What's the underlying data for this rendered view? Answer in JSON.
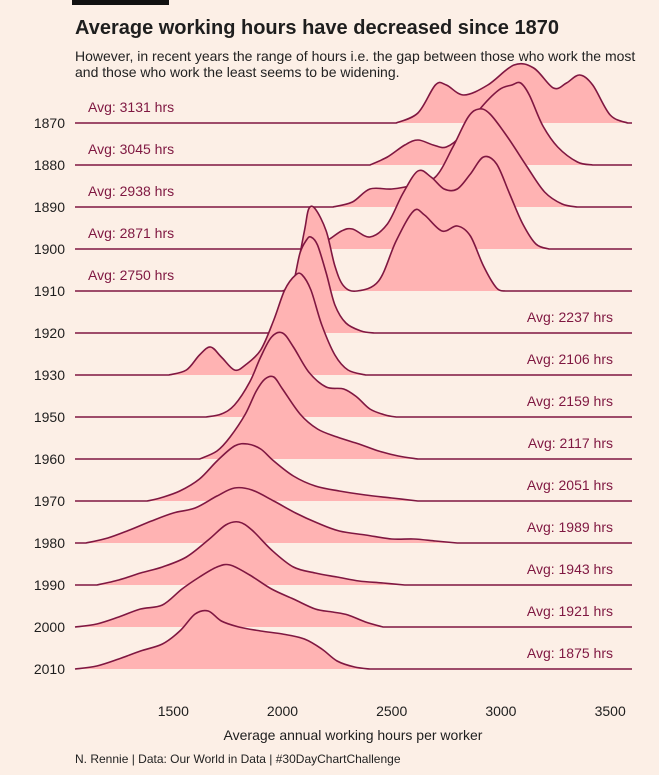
{
  "header": {
    "title": "Average working hours have decreased since 1870",
    "subtitle": "However, in recent years the range of hours i.e. the gap between those who work the most and those who work the least seems to be widening."
  },
  "caption": "N. Rennie | Data: Our World in Data | #30DayChartChallenge",
  "colors": {
    "background": "#fcefe6",
    "fill": "#ffb3b3",
    "line": "#7f1741",
    "text": "#1e1e1e"
  },
  "chart_data": {
    "type": "area",
    "xlabel": "Average annual working hours per worker",
    "ylabel": "",
    "xlim": [
      1050,
      3600
    ],
    "x_ticks": [
      1500,
      2000,
      2500,
      3000,
      3500
    ],
    "grid": false,
    "legend": "none",
    "series": [
      {
        "name": "1870",
        "label": "Avg: 3131 hrs",
        "points": [
          [
            2520,
            0
          ],
          [
            2620,
            10
          ],
          [
            2700,
            38
          ],
          [
            2750,
            38
          ],
          [
            2830,
            28
          ],
          [
            2940,
            38
          ],
          [
            3060,
            58
          ],
          [
            3150,
            55
          ],
          [
            3240,
            35
          ],
          [
            3300,
            40
          ],
          [
            3360,
            48
          ],
          [
            3420,
            38
          ],
          [
            3500,
            8
          ],
          [
            3580,
            0
          ]
        ]
      },
      {
        "name": "1880",
        "label": "Avg: 3045 hrs",
        "points": [
          [
            2400,
            0
          ],
          [
            2480,
            8
          ],
          [
            2560,
            20
          ],
          [
            2620,
            25
          ],
          [
            2690,
            20
          ],
          [
            2750,
            18
          ],
          [
            2820,
            30
          ],
          [
            2900,
            55
          ],
          [
            2990,
            75
          ],
          [
            3050,
            80
          ],
          [
            3090,
            82
          ],
          [
            3130,
            70
          ],
          [
            3190,
            40
          ],
          [
            3260,
            18
          ],
          [
            3350,
            3
          ],
          [
            3420,
            0
          ]
        ]
      },
      {
        "name": "1890",
        "label": "Avg: 2938 hrs",
        "points": [
          [
            2230,
            0
          ],
          [
            2320,
            5
          ],
          [
            2400,
            18
          ],
          [
            2500,
            18
          ],
          [
            2600,
            22
          ],
          [
            2700,
            30
          ],
          [
            2780,
            60
          ],
          [
            2850,
            90
          ],
          [
            2900,
            98
          ],
          [
            2950,
            93
          ],
          [
            3030,
            70
          ],
          [
            3120,
            40
          ],
          [
            3200,
            15
          ],
          [
            3280,
            3
          ],
          [
            3350,
            0
          ]
        ]
      },
      {
        "name": "1900",
        "label": "Avg: 2871 hrs",
        "points": [
          [
            2100,
            0
          ],
          [
            2200,
            8
          ],
          [
            2270,
            18
          ],
          [
            2320,
            20
          ],
          [
            2400,
            12
          ],
          [
            2480,
            25
          ],
          [
            2550,
            55
          ],
          [
            2620,
            78
          ],
          [
            2680,
            72
          ],
          [
            2740,
            60
          ],
          [
            2800,
            60
          ],
          [
            2860,
            75
          ],
          [
            2920,
            92
          ],
          [
            2980,
            85
          ],
          [
            3040,
            55
          ],
          [
            3100,
            25
          ],
          [
            3160,
            5
          ],
          [
            3220,
            0
          ]
        ]
      },
      {
        "name": "1910",
        "label": "Avg: 2750 hrs",
        "points": [
          [
            2000,
            0
          ],
          [
            2050,
            8
          ],
          [
            2100,
            60
          ],
          [
            2120,
            82
          ],
          [
            2150,
            82
          ],
          [
            2200,
            60
          ],
          [
            2240,
            25
          ],
          [
            2280,
            5
          ],
          [
            2340,
            0
          ],
          [
            2440,
            10
          ],
          [
            2520,
            50
          ],
          [
            2600,
            80
          ],
          [
            2650,
            76
          ],
          [
            2730,
            60
          ],
          [
            2800,
            65
          ],
          [
            2860,
            55
          ],
          [
            2920,
            25
          ],
          [
            2980,
            3
          ],
          [
            3020,
            0
          ]
        ]
      },
      {
        "name": "1920",
        "label": "Avg: 2237 hrs",
        "points": [
          [
            1940,
            0
          ],
          [
            2000,
            15
          ],
          [
            2050,
            50
          ],
          [
            2080,
            80
          ],
          [
            2110,
            93
          ],
          [
            2130,
            96
          ],
          [
            2160,
            88
          ],
          [
            2200,
            60
          ],
          [
            2240,
            28
          ],
          [
            2290,
            10
          ],
          [
            2360,
            2
          ],
          [
            2420,
            0
          ]
        ]
      },
      {
        "name": "1930",
        "label": "Avg: 2106 hrs",
        "points": [
          [
            1480,
            0
          ],
          [
            1560,
            5
          ],
          [
            1620,
            20
          ],
          [
            1670,
            28
          ],
          [
            1720,
            18
          ],
          [
            1780,
            5
          ],
          [
            1830,
            10
          ],
          [
            1900,
            25
          ],
          [
            1960,
            55
          ],
          [
            2010,
            85
          ],
          [
            2060,
            100
          ],
          [
            2090,
            100
          ],
          [
            2130,
            85
          ],
          [
            2180,
            50
          ],
          [
            2240,
            20
          ],
          [
            2300,
            5
          ],
          [
            2380,
            0
          ]
        ]
      },
      {
        "name": "1950",
        "label": "Avg: 2159 hrs",
        "points": [
          [
            1650,
            0
          ],
          [
            1720,
            3
          ],
          [
            1780,
            12
          ],
          [
            1850,
            35
          ],
          [
            1900,
            60
          ],
          [
            1950,
            80
          ],
          [
            2000,
            84
          ],
          [
            2050,
            70
          ],
          [
            2120,
            45
          ],
          [
            2200,
            30
          ],
          [
            2280,
            28
          ],
          [
            2340,
            20
          ],
          [
            2400,
            8
          ],
          [
            2470,
            2
          ],
          [
            2520,
            0
          ]
        ]
      },
      {
        "name": "1960",
        "label": "Avg: 2117 hrs",
        "points": [
          [
            1620,
            0
          ],
          [
            1700,
            8
          ],
          [
            1760,
            22
          ],
          [
            1830,
            45
          ],
          [
            1880,
            68
          ],
          [
            1920,
            80
          ],
          [
            1960,
            82
          ],
          [
            2000,
            70
          ],
          [
            2080,
            45
          ],
          [
            2160,
            30
          ],
          [
            2250,
            22
          ],
          [
            2350,
            15
          ],
          [
            2440,
            8
          ],
          [
            2530,
            3
          ],
          [
            2620,
            0
          ]
        ]
      },
      {
        "name": "1970",
        "label": "Avg: 2051 hrs",
        "points": [
          [
            1380,
            0
          ],
          [
            1440,
            3
          ],
          [
            1530,
            10
          ],
          [
            1620,
            22
          ],
          [
            1700,
            40
          ],
          [
            1780,
            55
          ],
          [
            1840,
            57
          ],
          [
            1900,
            52
          ],
          [
            1960,
            40
          ],
          [
            2050,
            25
          ],
          [
            2150,
            15
          ],
          [
            2260,
            10
          ],
          [
            2380,
            6
          ],
          [
            2500,
            3
          ],
          [
            2620,
            0
          ]
        ]
      },
      {
        "name": "1980",
        "label": "Avg: 1989 hrs",
        "points": [
          [
            1100,
            0
          ],
          [
            1200,
            5
          ],
          [
            1300,
            13
          ],
          [
            1400,
            22
          ],
          [
            1500,
            30
          ],
          [
            1600,
            35
          ],
          [
            1700,
            47
          ],
          [
            1780,
            55
          ],
          [
            1860,
            53
          ],
          [
            1960,
            42
          ],
          [
            2060,
            30
          ],
          [
            2160,
            20
          ],
          [
            2260,
            12
          ],
          [
            2380,
            8
          ],
          [
            2500,
            4
          ],
          [
            2600,
            4
          ],
          [
            2700,
            2
          ],
          [
            2800,
            0
          ]
        ]
      },
      {
        "name": "1990",
        "label": "Avg: 1943 hrs",
        "points": [
          [
            1150,
            0
          ],
          [
            1250,
            5
          ],
          [
            1350,
            12
          ],
          [
            1450,
            18
          ],
          [
            1560,
            28
          ],
          [
            1660,
            45
          ],
          [
            1740,
            60
          ],
          [
            1800,
            63
          ],
          [
            1860,
            55
          ],
          [
            1950,
            35
          ],
          [
            2050,
            18
          ],
          [
            2150,
            12
          ],
          [
            2250,
            8
          ],
          [
            2350,
            4
          ],
          [
            2460,
            2
          ],
          [
            2560,
            0
          ]
        ]
      },
      {
        "name": "2000",
        "label": "Avg: 1921 hrs",
        "points": [
          [
            1050,
            0
          ],
          [
            1150,
            3
          ],
          [
            1250,
            10
          ],
          [
            1350,
            18
          ],
          [
            1450,
            22
          ],
          [
            1540,
            38
          ],
          [
            1620,
            50
          ],
          [
            1700,
            60
          ],
          [
            1760,
            62
          ],
          [
            1850,
            52
          ],
          [
            1950,
            38
          ],
          [
            2050,
            28
          ],
          [
            2150,
            18
          ],
          [
            2230,
            15
          ],
          [
            2300,
            12
          ],
          [
            2380,
            5
          ],
          [
            2460,
            0
          ]
        ]
      },
      {
        "name": "2010",
        "label": "Avg: 1875 hrs",
        "points": [
          [
            1050,
            0
          ],
          [
            1150,
            3
          ],
          [
            1250,
            10
          ],
          [
            1350,
            18
          ],
          [
            1450,
            25
          ],
          [
            1530,
            38
          ],
          [
            1600,
            55
          ],
          [
            1660,
            58
          ],
          [
            1720,
            48
          ],
          [
            1800,
            42
          ],
          [
            1900,
            38
          ],
          [
            2000,
            35
          ],
          [
            2100,
            30
          ],
          [
            2180,
            20
          ],
          [
            2250,
            8
          ],
          [
            2330,
            2
          ],
          [
            2400,
            0
          ]
        ]
      }
    ]
  }
}
